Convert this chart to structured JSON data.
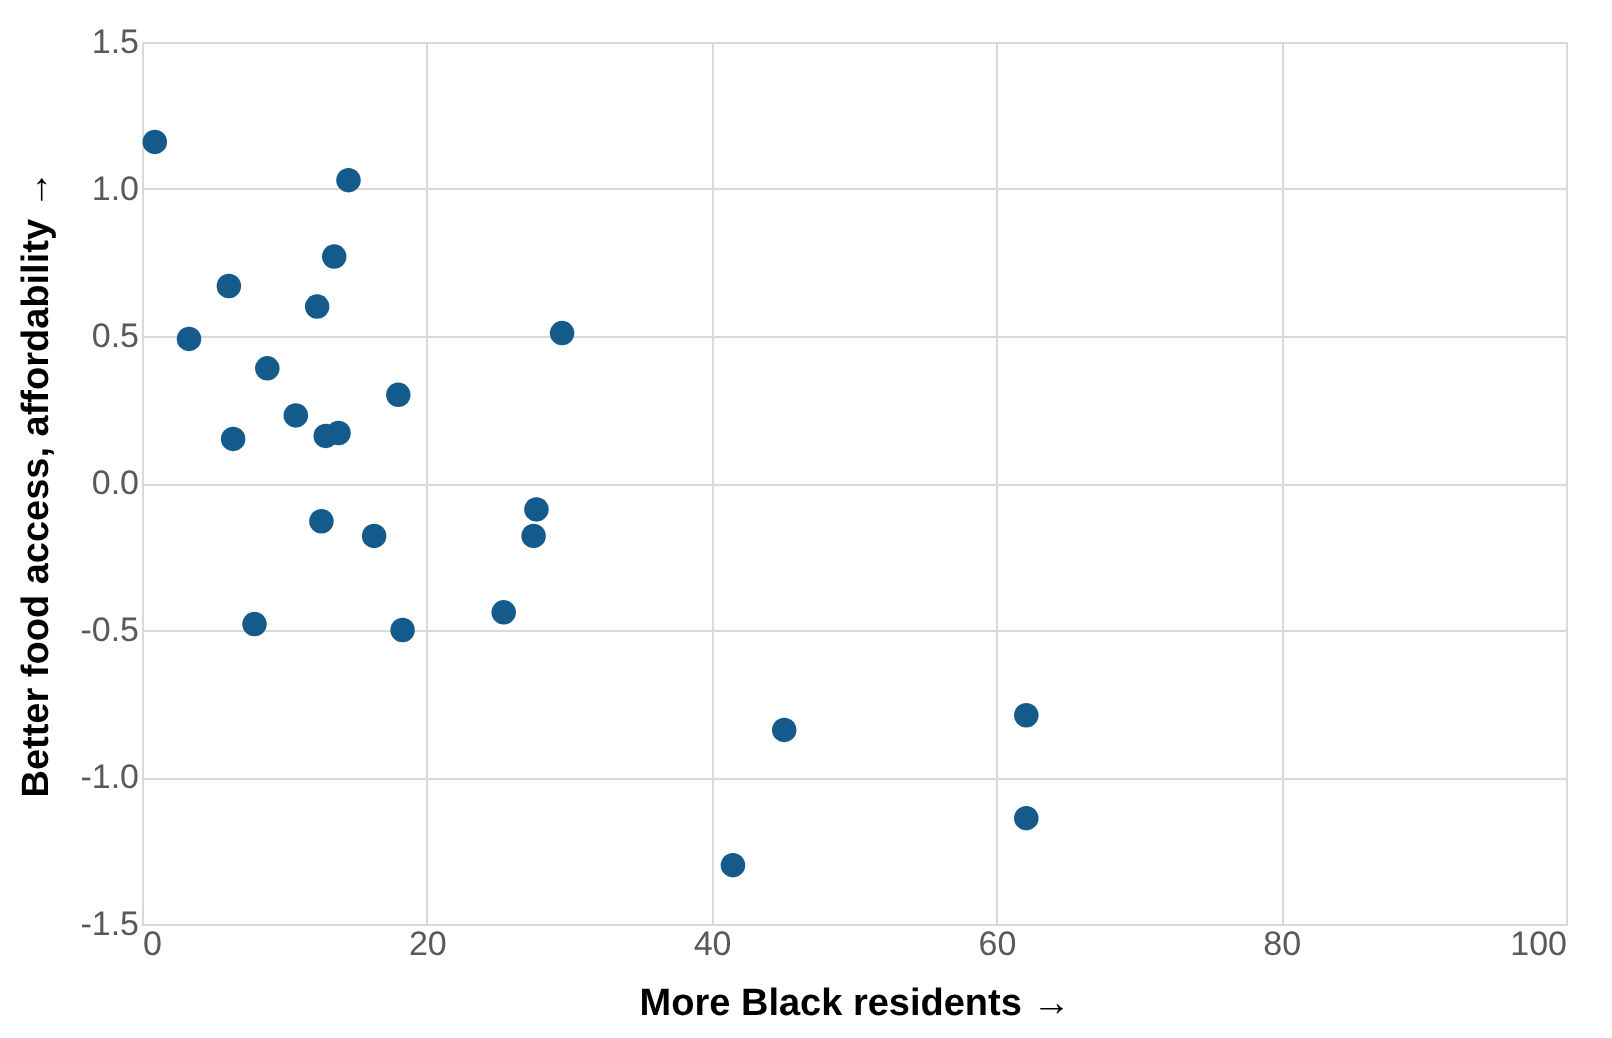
{
  "chart_data": {
    "type": "scatter",
    "xlabel": "More Black residents →",
    "ylabel": "Better food access, affordability →",
    "x": [
      0.9,
      14.5,
      6.1,
      13.5,
      3.3,
      12.3,
      29.5,
      8.8,
      18.0,
      10.8,
      6.4,
      12.9,
      13.8,
      27.7,
      27.5,
      12.6,
      16.3,
      7.9,
      18.3,
      25.4,
      45.1,
      62.1,
      62.1,
      41.5
    ],
    "series": [
      {
        "color": "#145a8a",
        "values": [
          1.16,
          1.03,
          0.67,
          0.77,
          0.49,
          0.6,
          0.51,
          0.39,
          0.3,
          0.23,
          0.15,
          0.16,
          0.17,
          -0.09,
          -0.18,
          -0.13,
          -0.18,
          -0.48,
          -0.5,
          -0.44,
          -0.84,
          -0.79,
          -1.14,
          -1.3
        ]
      }
    ],
    "xlim": [
      0,
      100
    ],
    "xticks": [
      0,
      20,
      40,
      60,
      80,
      100
    ],
    "ylim": [
      -1.5,
      1.5
    ],
    "yticks": [
      {
        "value": -1.5,
        "label": "-1.5"
      },
      {
        "value": -1,
        "label": "-1.0"
      },
      {
        "value": -0.5,
        "label": "-0.5"
      },
      {
        "value": 0,
        "label": "0.0"
      },
      {
        "value": 0.5,
        "label": "0.5"
      },
      {
        "value": 1,
        "label": "1.0"
      },
      {
        "value": 1.5,
        "label": "1.5"
      }
    ],
    "grid": true,
    "marker": "circle"
  }
}
